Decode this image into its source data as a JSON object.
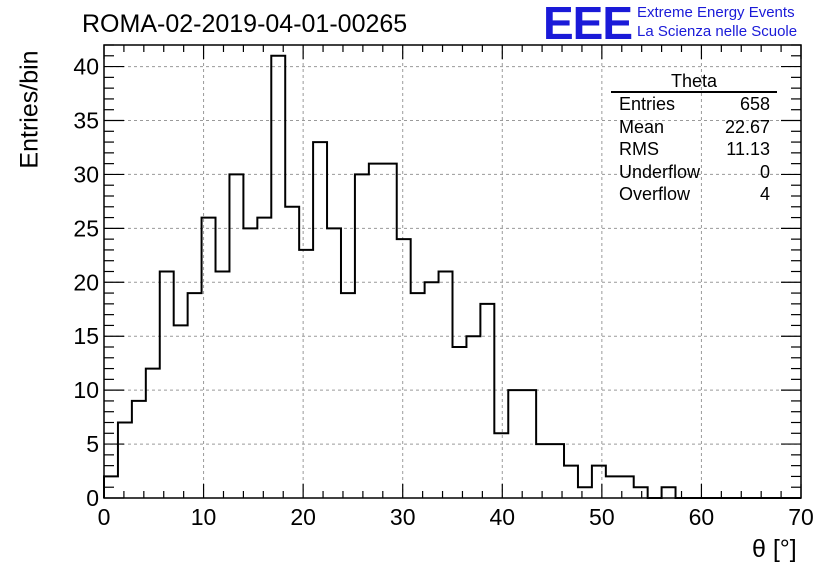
{
  "chart_data": {
    "type": "histogram",
    "title": "ROMA-02-2019-04-01-00265",
    "xlabel": "θ [°]",
    "ylabel": "Entries/bin",
    "xlim": [
      0,
      70
    ],
    "ylim": [
      0,
      42
    ],
    "bin_width": 1.4,
    "xticks": [
      0,
      10,
      20,
      30,
      40,
      50,
      60,
      70
    ],
    "yticks": [
      0,
      5,
      10,
      15,
      20,
      25,
      30,
      35,
      40
    ],
    "grid": true,
    "values": [
      2,
      7,
      9,
      12,
      21,
      16,
      19,
      26,
      21,
      30,
      25,
      26,
      41,
      27,
      23,
      33,
      25,
      19,
      30,
      31,
      31,
      24,
      19,
      20,
      21,
      14,
      15,
      18,
      6,
      10,
      10,
      5,
      5,
      3,
      1,
      3,
      2,
      2,
      1,
      0,
      1,
      0,
      0,
      0,
      0,
      0,
      0,
      0,
      0,
      0
    ]
  },
  "stats_box": {
    "name": "Theta",
    "rows": [
      {
        "label": "Entries",
        "value": "658"
      },
      {
        "label": "Mean",
        "value": "22.67"
      },
      {
        "label": "RMS",
        "value": "11.13"
      },
      {
        "label": "Underflow",
        "value": "0"
      },
      {
        "label": "Overflow",
        "value": "4"
      }
    ]
  },
  "logo": {
    "mark": "EEE",
    "line1": "Extreme Energy Events",
    "line2": "La Scienza nelle Scuole",
    "color": "#1a1ad8"
  }
}
